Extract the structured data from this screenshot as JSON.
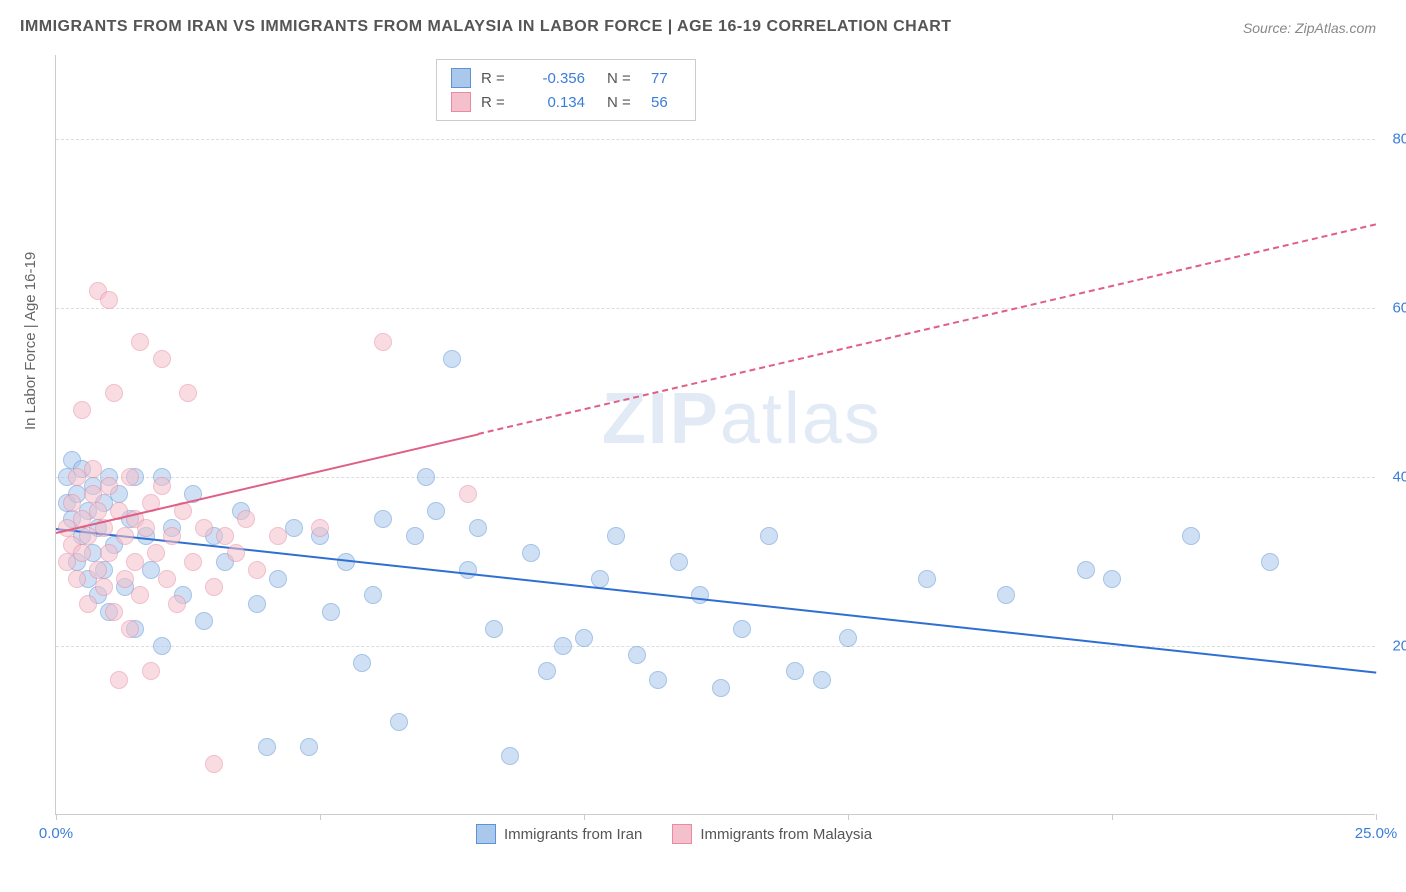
{
  "title": "IMMIGRANTS FROM IRAN VS IMMIGRANTS FROM MALAYSIA IN LABOR FORCE | AGE 16-19 CORRELATION CHART",
  "source": "Source: ZipAtlas.com",
  "ylabel": "In Labor Force | Age 16-19",
  "watermark_a": "ZIP",
  "watermark_b": "atlas",
  "chart": {
    "type": "scatter",
    "xlim": [
      0,
      25
    ],
    "ylim": [
      0,
      90
    ],
    "xticks": [
      0,
      5,
      10,
      15,
      20,
      25
    ],
    "xtick_labels": [
      "0.0%",
      "",
      "",
      "",
      "",
      "25.0%"
    ],
    "yticks": [
      20,
      40,
      60,
      80
    ],
    "ytick_labels": [
      "20.0%",
      "40.0%",
      "60.0%",
      "80.0%"
    ],
    "grid_color": "#dddddd",
    "axis_color": "#cccccc",
    "background_color": "#ffffff",
    "marker_radius": 9,
    "marker_opacity": 0.55,
    "marker_border_width": 1.5
  },
  "series": [
    {
      "name": "Immigrants from Iran",
      "color_fill": "#a9c8ec",
      "color_stroke": "#5b93d6",
      "trend_color": "#2e6fd1",
      "R": "-0.356",
      "N": "77",
      "trend": {
        "x1": 0,
        "y1": 34,
        "x2": 25,
        "y2": 17,
        "solid_until_x": 25
      },
      "points": [
        [
          0.2,
          40
        ],
        [
          0.2,
          37
        ],
        [
          0.3,
          42
        ],
        [
          0.3,
          35
        ],
        [
          0.4,
          38
        ],
        [
          0.4,
          30
        ],
        [
          0.5,
          41
        ],
        [
          0.5,
          33
        ],
        [
          0.6,
          36
        ],
        [
          0.6,
          28
        ],
        [
          0.7,
          39
        ],
        [
          0.7,
          31
        ],
        [
          0.8,
          34
        ],
        [
          0.8,
          26
        ],
        [
          0.9,
          37
        ],
        [
          0.9,
          29
        ],
        [
          1.0,
          40
        ],
        [
          1.0,
          24
        ],
        [
          1.1,
          32
        ],
        [
          1.2,
          38
        ],
        [
          1.3,
          27
        ],
        [
          1.4,
          35
        ],
        [
          1.5,
          40
        ],
        [
          1.5,
          22
        ],
        [
          1.7,
          33
        ],
        [
          1.8,
          29
        ],
        [
          2.0,
          40
        ],
        [
          2.0,
          20
        ],
        [
          2.2,
          34
        ],
        [
          2.4,
          26
        ],
        [
          2.6,
          38
        ],
        [
          2.8,
          23
        ],
        [
          3.0,
          33
        ],
        [
          3.2,
          30
        ],
        [
          3.5,
          36
        ],
        [
          3.8,
          25
        ],
        [
          4.0,
          8
        ],
        [
          4.2,
          28
        ],
        [
          4.5,
          34
        ],
        [
          4.8,
          8
        ],
        [
          5.0,
          33
        ],
        [
          5.2,
          24
        ],
        [
          5.5,
          30
        ],
        [
          5.8,
          18
        ],
        [
          6.0,
          26
        ],
        [
          6.2,
          35
        ],
        [
          6.5,
          11
        ],
        [
          6.8,
          33
        ],
        [
          7.0,
          40
        ],
        [
          7.2,
          36
        ],
        [
          7.5,
          54
        ],
        [
          7.8,
          29
        ],
        [
          8.0,
          34
        ],
        [
          8.3,
          22
        ],
        [
          8.6,
          7
        ],
        [
          9.0,
          31
        ],
        [
          9.3,
          17
        ],
        [
          9.6,
          20
        ],
        [
          10.0,
          21
        ],
        [
          10.3,
          28
        ],
        [
          10.6,
          33
        ],
        [
          11.0,
          19
        ],
        [
          11.4,
          16
        ],
        [
          11.8,
          30
        ],
        [
          12.2,
          26
        ],
        [
          12.6,
          15
        ],
        [
          13.0,
          22
        ],
        [
          13.5,
          33
        ],
        [
          14.0,
          17
        ],
        [
          14.5,
          16
        ],
        [
          15.0,
          21
        ],
        [
          16.5,
          28
        ],
        [
          18.0,
          26
        ],
        [
          19.5,
          29
        ],
        [
          20.0,
          28
        ],
        [
          21.5,
          33
        ],
        [
          23.0,
          30
        ]
      ]
    },
    {
      "name": "Immigrants from Malaysia",
      "color_fill": "#f4c0cc",
      "color_stroke": "#e88aa3",
      "trend_color": "#e05f85",
      "R": "0.134",
      "N": "56",
      "trend": {
        "x1": 0,
        "y1": 33.5,
        "x2": 25,
        "y2": 70,
        "solid_until_x": 8
      },
      "points": [
        [
          0.2,
          30
        ],
        [
          0.2,
          34
        ],
        [
          0.3,
          37
        ],
        [
          0.3,
          32
        ],
        [
          0.4,
          40
        ],
        [
          0.4,
          28
        ],
        [
          0.5,
          35
        ],
        [
          0.5,
          31
        ],
        [
          0.5,
          48
        ],
        [
          0.6,
          33
        ],
        [
          0.6,
          25
        ],
        [
          0.7,
          38
        ],
        [
          0.7,
          41
        ],
        [
          0.8,
          29
        ],
        [
          0.8,
          36
        ],
        [
          0.8,
          62
        ],
        [
          0.9,
          34
        ],
        [
          0.9,
          27
        ],
        [
          1.0,
          39
        ],
        [
          1.0,
          31
        ],
        [
          1.0,
          61
        ],
        [
          1.1,
          50
        ],
        [
          1.1,
          24
        ],
        [
          1.2,
          36
        ],
        [
          1.2,
          16
        ],
        [
          1.3,
          33
        ],
        [
          1.3,
          28
        ],
        [
          1.4,
          40
        ],
        [
          1.4,
          22
        ],
        [
          1.5,
          35
        ],
        [
          1.5,
          30
        ],
        [
          1.6,
          26
        ],
        [
          1.6,
          56
        ],
        [
          1.7,
          34
        ],
        [
          1.8,
          37
        ],
        [
          1.8,
          17
        ],
        [
          1.9,
          31
        ],
        [
          2.0,
          39
        ],
        [
          2.0,
          54
        ],
        [
          2.1,
          28
        ],
        [
          2.2,
          33
        ],
        [
          2.3,
          25
        ],
        [
          2.4,
          36
        ],
        [
          2.5,
          50
        ],
        [
          2.6,
          30
        ],
        [
          2.8,
          34
        ],
        [
          3.0,
          27
        ],
        [
          3.2,
          33
        ],
        [
          3.4,
          31
        ],
        [
          3.0,
          6
        ],
        [
          3.6,
          35
        ],
        [
          3.8,
          29
        ],
        [
          4.2,
          33
        ],
        [
          5.0,
          34
        ],
        [
          6.2,
          56
        ],
        [
          7.8,
          38
        ]
      ]
    }
  ],
  "legend_bottom": [
    "Immigrants from Iran",
    "Immigrants from Malaysia"
  ]
}
